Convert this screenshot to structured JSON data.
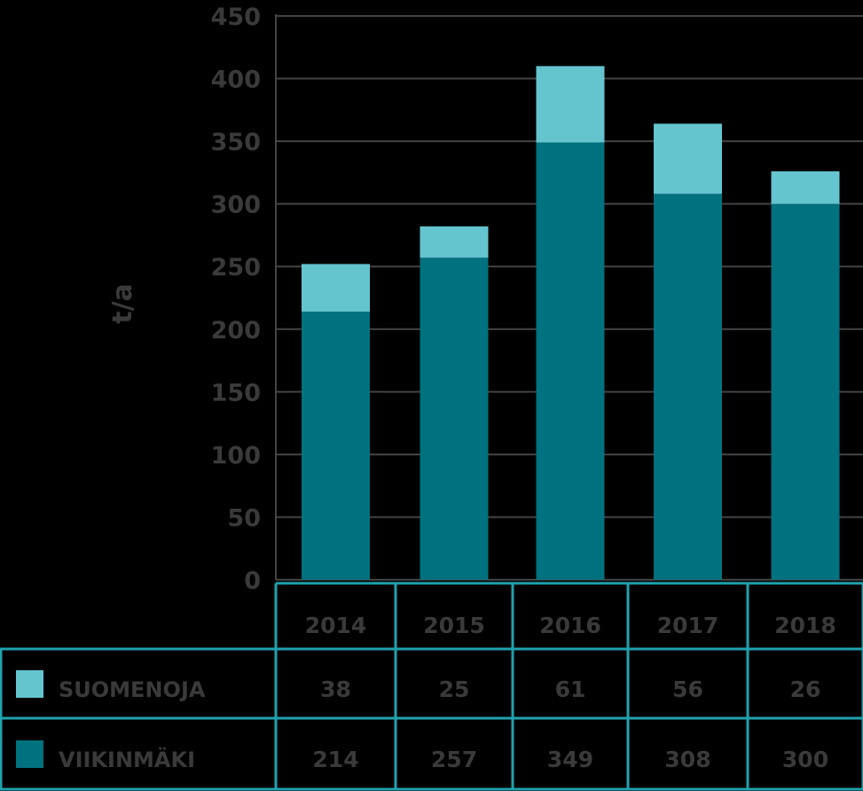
{
  "chart_data": {
    "type": "bar",
    "stacked": true,
    "categories": [
      "2014",
      "2015",
      "2016",
      "2017",
      "2018"
    ],
    "series": [
      {
        "name": "VIIKINMÄKI",
        "values": [
          214,
          257,
          349,
          308,
          300
        ]
      },
      {
        "name": "SUOMENOJA",
        "values": [
          38,
          25,
          61,
          56,
          26
        ]
      }
    ],
    "ylabel": "t/a",
    "ylim": [
      0,
      450
    ],
    "yticks": [
      "0",
      "50",
      "100",
      "150",
      "200",
      "250",
      "300",
      "350",
      "400",
      "450"
    ],
    "grid": true,
    "legend": "data table below chart"
  },
  "colors": {
    "background": "#000000",
    "viikinmaki": "#00717E",
    "suomenoja": "#64C5CF",
    "gridline": "#444444",
    "table_border": "#1FA2AE",
    "text": "#3A3A3A"
  },
  "table": {
    "rows": [
      {
        "label": "SUOMENOJA",
        "values": [
          "38",
          "25",
          "61",
          "56",
          "26"
        ]
      },
      {
        "label": "VIIKINMÄKI",
        "values": [
          "214",
          "257",
          "349",
          "308",
          "300"
        ]
      }
    ]
  }
}
